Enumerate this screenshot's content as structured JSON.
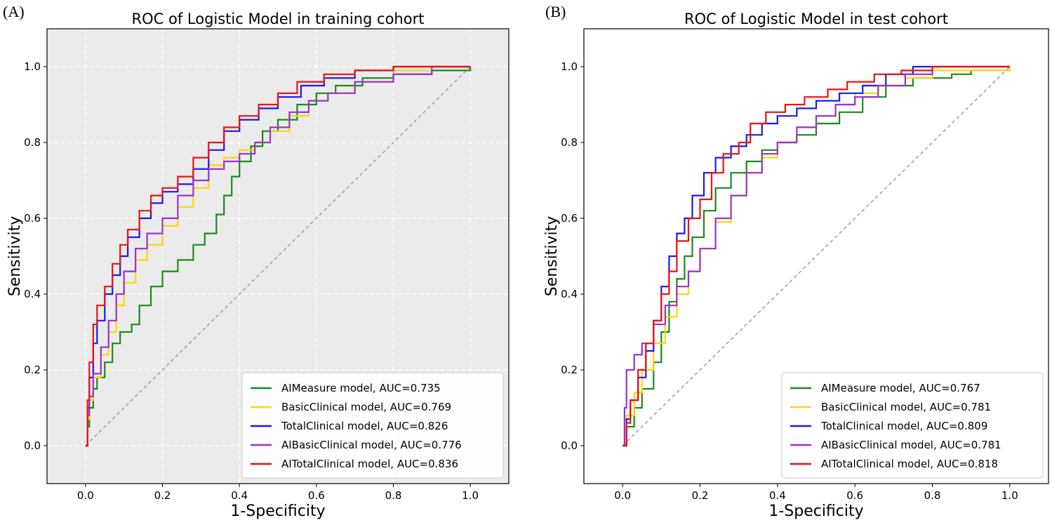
{
  "chart_data": [
    {
      "type": "line",
      "panel_label": "(A)",
      "title": "ROC of Logistic Model in training cohort",
      "xlabel": "1-Specificity",
      "ylabel": "Sensitivity",
      "xlim": [
        -0.1,
        1.1
      ],
      "ylim": [
        -0.1,
        1.1
      ],
      "xticks": [
        "0.0",
        "0.2",
        "0.4",
        "0.6",
        "0.8",
        "1.0"
      ],
      "yticks": [
        "0.0",
        "0.2",
        "0.4",
        "0.6",
        "0.8",
        "1.0"
      ],
      "grid": true,
      "background": "#ebebeb",
      "legend_position": "lower-right",
      "diagonal": true,
      "series": [
        {
          "name": "AIMeasure model, AUC=0.735",
          "color": "#1a8a1a",
          "points": [
            [
              0,
              0
            ],
            [
              0.005,
              0.05
            ],
            [
              0.01,
              0.1
            ],
            [
              0.02,
              0.15
            ],
            [
              0.03,
              0.18
            ],
            [
              0.05,
              0.22
            ],
            [
              0.07,
              0.27
            ],
            [
              0.09,
              0.3
            ],
            [
              0.12,
              0.32
            ],
            [
              0.14,
              0.37
            ],
            [
              0.17,
              0.42
            ],
            [
              0.2,
              0.46
            ],
            [
              0.24,
              0.49
            ],
            [
              0.28,
              0.53
            ],
            [
              0.31,
              0.56
            ],
            [
              0.34,
              0.61
            ],
            [
              0.36,
              0.66
            ],
            [
              0.38,
              0.71
            ],
            [
              0.4,
              0.75
            ],
            [
              0.43,
              0.79
            ],
            [
              0.46,
              0.83
            ],
            [
              0.5,
              0.86
            ],
            [
              0.55,
              0.9
            ],
            [
              0.6,
              0.93
            ],
            [
              0.65,
              0.95
            ],
            [
              0.72,
              0.97
            ],
            [
              0.8,
              0.98
            ],
            [
              0.9,
              0.99
            ],
            [
              1,
              1
            ]
          ]
        },
        {
          "name": "BasicClinical model, AUC=0.769",
          "color": "#ffd700",
          "points": [
            [
              0,
              0
            ],
            [
              0.005,
              0.07
            ],
            [
              0.01,
              0.12
            ],
            [
              0.02,
              0.18
            ],
            [
              0.04,
              0.24
            ],
            [
              0.06,
              0.3
            ],
            [
              0.08,
              0.37
            ],
            [
              0.1,
              0.43
            ],
            [
              0.13,
              0.49
            ],
            [
              0.16,
              0.53
            ],
            [
              0.2,
              0.58
            ],
            [
              0.24,
              0.63
            ],
            [
              0.28,
              0.68
            ],
            [
              0.32,
              0.74
            ],
            [
              0.36,
              0.76
            ],
            [
              0.4,
              0.78
            ],
            [
              0.44,
              0.8
            ],
            [
              0.48,
              0.83
            ],
            [
              0.53,
              0.87
            ],
            [
              0.58,
              0.91
            ],
            [
              0.63,
              0.93
            ],
            [
              0.7,
              0.96
            ],
            [
              0.8,
              0.99
            ],
            [
              0.9,
              1.0
            ],
            [
              1,
              1
            ]
          ]
        },
        {
          "name": "TotalClinical model, AUC=0.826",
          "color": "#1a1aee",
          "points": [
            [
              0,
              0
            ],
            [
              0.005,
              0.1
            ],
            [
              0.01,
              0.18
            ],
            [
              0.02,
              0.27
            ],
            [
              0.03,
              0.33
            ],
            [
              0.05,
              0.4
            ],
            [
              0.07,
              0.45
            ],
            [
              0.09,
              0.5
            ],
            [
              0.11,
              0.55
            ],
            [
              0.14,
              0.6
            ],
            [
              0.17,
              0.64
            ],
            [
              0.2,
              0.67
            ],
            [
              0.24,
              0.69
            ],
            [
              0.28,
              0.73
            ],
            [
              0.32,
              0.78
            ],
            [
              0.36,
              0.83
            ],
            [
              0.4,
              0.86
            ],
            [
              0.45,
              0.89
            ],
            [
              0.5,
              0.92
            ],
            [
              0.56,
              0.95
            ],
            [
              0.62,
              0.97
            ],
            [
              0.7,
              0.99
            ],
            [
              0.8,
              1.0
            ],
            [
              1,
              1
            ]
          ]
        },
        {
          "name": "AIBasicClinical model, AUC=0.776",
          "color": "#9a32cd",
          "points": [
            [
              0,
              0
            ],
            [
              0.005,
              0.08
            ],
            [
              0.01,
              0.13
            ],
            [
              0.02,
              0.19
            ],
            [
              0.04,
              0.26
            ],
            [
              0.06,
              0.33
            ],
            [
              0.08,
              0.4
            ],
            [
              0.1,
              0.46
            ],
            [
              0.13,
              0.52
            ],
            [
              0.16,
              0.56
            ],
            [
              0.2,
              0.6
            ],
            [
              0.24,
              0.66
            ],
            [
              0.28,
              0.7
            ],
            [
              0.32,
              0.73
            ],
            [
              0.36,
              0.75
            ],
            [
              0.4,
              0.77
            ],
            [
              0.44,
              0.8
            ],
            [
              0.48,
              0.84
            ],
            [
              0.53,
              0.88
            ],
            [
              0.58,
              0.91
            ],
            [
              0.63,
              0.93
            ],
            [
              0.7,
              0.96
            ],
            [
              0.8,
              0.98
            ],
            [
              0.9,
              1.0
            ],
            [
              1,
              1
            ]
          ]
        },
        {
          "name": "AITotalClinical model, AUC=0.836",
          "color": "#ee1111",
          "points": [
            [
              0,
              0
            ],
            [
              0.005,
              0.12
            ],
            [
              0.01,
              0.22
            ],
            [
              0.02,
              0.32
            ],
            [
              0.03,
              0.37
            ],
            [
              0.05,
              0.42
            ],
            [
              0.07,
              0.48
            ],
            [
              0.09,
              0.53
            ],
            [
              0.11,
              0.57
            ],
            [
              0.14,
              0.62
            ],
            [
              0.17,
              0.66
            ],
            [
              0.2,
              0.68
            ],
            [
              0.24,
              0.71
            ],
            [
              0.28,
              0.76
            ],
            [
              0.32,
              0.8
            ],
            [
              0.36,
              0.84
            ],
            [
              0.4,
              0.87
            ],
            [
              0.45,
              0.9
            ],
            [
              0.5,
              0.93
            ],
            [
              0.55,
              0.96
            ],
            [
              0.62,
              0.98
            ],
            [
              0.7,
              0.99
            ],
            [
              0.8,
              1.0
            ],
            [
              1,
              1
            ]
          ]
        }
      ]
    },
    {
      "type": "line",
      "panel_label": "(B)",
      "title": "ROC of Logistic Model in test cohort",
      "xlabel": "1-Specificity",
      "ylabel": "Sensitivity",
      "xlim": [
        -0.1,
        1.1
      ],
      "ylim": [
        -0.1,
        1.1
      ],
      "xticks": [
        "0.0",
        "0.2",
        "0.4",
        "0.6",
        "0.8",
        "1.0"
      ],
      "yticks": [
        "0.0",
        "0.2",
        "0.4",
        "0.6",
        "0.8",
        "1.0"
      ],
      "grid": false,
      "background": "#ffffff",
      "legend_position": "lower-right",
      "diagonal": true,
      "series": [
        {
          "name": "AIMeasure model, AUC=0.767",
          "color": "#1a8a1a",
          "points": [
            [
              0,
              0
            ],
            [
              0.01,
              0.05
            ],
            [
              0.03,
              0.1
            ],
            [
              0.05,
              0.15
            ],
            [
              0.08,
              0.22
            ],
            [
              0.1,
              0.3
            ],
            [
              0.12,
              0.38
            ],
            [
              0.14,
              0.44
            ],
            [
              0.16,
              0.5
            ],
            [
              0.18,
              0.55
            ],
            [
              0.21,
              0.62
            ],
            [
              0.24,
              0.68
            ],
            [
              0.28,
              0.72
            ],
            [
              0.32,
              0.75
            ],
            [
              0.36,
              0.78
            ],
            [
              0.4,
              0.8
            ],
            [
              0.45,
              0.82
            ],
            [
              0.5,
              0.85
            ],
            [
              0.56,
              0.88
            ],
            [
              0.62,
              0.92
            ],
            [
              0.68,
              0.95
            ],
            [
              0.75,
              0.97
            ],
            [
              0.85,
              0.98
            ],
            [
              0.9,
              0.99
            ],
            [
              1,
              1
            ]
          ]
        },
        {
          "name": "BasicClinical model, AUC=0.781",
          "color": "#ffd700",
          "points": [
            [
              0,
              0
            ],
            [
              0.01,
              0.08
            ],
            [
              0.03,
              0.14
            ],
            [
              0.05,
              0.2
            ],
            [
              0.08,
              0.27
            ],
            [
              0.11,
              0.34
            ],
            [
              0.14,
              0.4
            ],
            [
              0.17,
              0.46
            ],
            [
              0.2,
              0.52
            ],
            [
              0.24,
              0.59
            ],
            [
              0.28,
              0.66
            ],
            [
              0.32,
              0.72
            ],
            [
              0.36,
              0.76
            ],
            [
              0.4,
              0.8
            ],
            [
              0.45,
              0.84
            ],
            [
              0.5,
              0.87
            ],
            [
              0.55,
              0.9
            ],
            [
              0.6,
              0.93
            ],
            [
              0.66,
              0.95
            ],
            [
              0.73,
              0.97
            ],
            [
              0.8,
              0.99
            ],
            [
              1,
              1
            ]
          ]
        },
        {
          "name": "TotalClinical model, AUC=0.809",
          "color": "#1a1aee",
          "points": [
            [
              0,
              0
            ],
            [
              0.01,
              0.07
            ],
            [
              0.02,
              0.12
            ],
            [
              0.04,
              0.18
            ],
            [
              0.06,
              0.25
            ],
            [
              0.08,
              0.33
            ],
            [
              0.1,
              0.42
            ],
            [
              0.12,
              0.5
            ],
            [
              0.14,
              0.56
            ],
            [
              0.16,
              0.6
            ],
            [
              0.18,
              0.66
            ],
            [
              0.21,
              0.72
            ],
            [
              0.24,
              0.76
            ],
            [
              0.28,
              0.79
            ],
            [
              0.32,
              0.82
            ],
            [
              0.36,
              0.85
            ],
            [
              0.4,
              0.87
            ],
            [
              0.45,
              0.89
            ],
            [
              0.5,
              0.91
            ],
            [
              0.56,
              0.93
            ],
            [
              0.62,
              0.95
            ],
            [
              0.68,
              0.98
            ],
            [
              0.75,
              1.0
            ],
            [
              1,
              1
            ]
          ]
        },
        {
          "name": "AIBasicClinical model, AUC=0.781",
          "color": "#9a32cd",
          "points": [
            [
              0,
              0
            ],
            [
              0.005,
              0.1
            ],
            [
              0.01,
              0.2
            ],
            [
              0.03,
              0.24
            ],
            [
              0.05,
              0.27
            ],
            [
              0.08,
              0.32
            ],
            [
              0.11,
              0.37
            ],
            [
              0.14,
              0.42
            ],
            [
              0.17,
              0.46
            ],
            [
              0.2,
              0.52
            ],
            [
              0.24,
              0.6
            ],
            [
              0.28,
              0.66
            ],
            [
              0.32,
              0.72
            ],
            [
              0.36,
              0.77
            ],
            [
              0.4,
              0.8
            ],
            [
              0.45,
              0.84
            ],
            [
              0.5,
              0.87
            ],
            [
              0.55,
              0.9
            ],
            [
              0.6,
              0.92
            ],
            [
              0.66,
              0.95
            ],
            [
              0.73,
              0.98
            ],
            [
              0.8,
              1.0
            ],
            [
              1,
              1
            ]
          ]
        },
        {
          "name": "AITotalClinical model, AUC=0.818",
          "color": "#ee1111",
          "points": [
            [
              0,
              0
            ],
            [
              0.01,
              0.06
            ],
            [
              0.02,
              0.12
            ],
            [
              0.04,
              0.2
            ],
            [
              0.06,
              0.27
            ],
            [
              0.08,
              0.33
            ],
            [
              0.1,
              0.4
            ],
            [
              0.12,
              0.46
            ],
            [
              0.14,
              0.54
            ],
            [
              0.17,
              0.6
            ],
            [
              0.2,
              0.65
            ],
            [
              0.23,
              0.72
            ],
            [
              0.26,
              0.77
            ],
            [
              0.3,
              0.8
            ],
            [
              0.33,
              0.85
            ],
            [
              0.37,
              0.88
            ],
            [
              0.42,
              0.9
            ],
            [
              0.47,
              0.92
            ],
            [
              0.53,
              0.94
            ],
            [
              0.58,
              0.96
            ],
            [
              0.65,
              0.98
            ],
            [
              0.72,
              0.99
            ],
            [
              0.8,
              1.0
            ],
            [
              1,
              1
            ]
          ]
        }
      ]
    }
  ]
}
